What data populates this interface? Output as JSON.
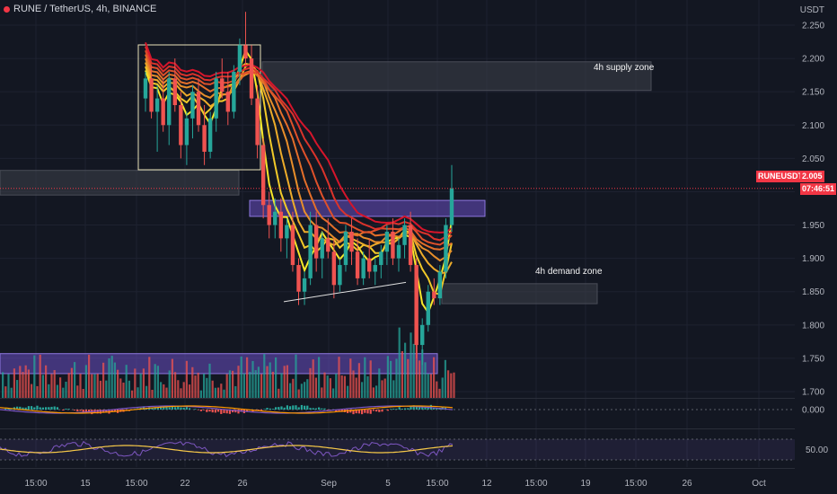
{
  "header": {
    "title": "RUNE / TetherUS, 4h, BINANCE",
    "unit": "USDT"
  },
  "price_badge": {
    "symbol": "RUNEUSDT",
    "price": "2.005",
    "countdown": "07:46:51"
  },
  "annotations": {
    "supply_zone": "4h supply zone",
    "demand_zone": "4h demand zone"
  },
  "indicators": {
    "oscillator_level": "0.000",
    "rsi_level": "50.00"
  },
  "colors": {
    "background": "#131722",
    "up": "#26a69a",
    "down": "#ef5350",
    "zone_gray": "#3a3d48",
    "zone_purple": "#6a4fc2",
    "ribbon_start": "#f7e829",
    "ribbon_end": "#d5152b"
  },
  "chart_data": {
    "type": "candlestick",
    "y_axis": {
      "ticks": [
        "2.250",
        "2.200",
        "2.150",
        "2.100",
        "2.050",
        "2.000",
        "1.950",
        "1.900",
        "1.850",
        "1.800",
        "1.750",
        "1.700"
      ],
      "range": [
        1.67,
        2.27
      ]
    },
    "x_axis": {
      "ticks": [
        "15:00",
        "15",
        "15:00",
        "22",
        "26",
        "Sep",
        "5",
        "15:00",
        "12",
        "15:00",
        "19",
        "15:00",
        "26",
        "Oct"
      ]
    },
    "candles": [
      [
        2.14,
        2.18,
        2.12,
        2.17
      ],
      [
        2.17,
        2.19,
        2.11,
        2.12
      ],
      [
        2.12,
        2.16,
        2.06,
        2.14
      ],
      [
        2.14,
        2.17,
        2.09,
        2.1
      ],
      [
        2.1,
        2.18,
        2.07,
        2.17
      ],
      [
        2.17,
        2.2,
        2.12,
        2.13
      ],
      [
        2.13,
        2.15,
        2.05,
        2.07
      ],
      [
        2.07,
        2.12,
        2.04,
        2.11
      ],
      [
        2.11,
        2.16,
        2.08,
        2.15
      ],
      [
        2.15,
        2.17,
        2.09,
        2.1
      ],
      [
        2.1,
        2.13,
        2.04,
        2.06
      ],
      [
        2.06,
        2.12,
        2.05,
        2.11
      ],
      [
        2.11,
        2.18,
        2.09,
        2.17
      ],
      [
        2.17,
        2.2,
        2.14,
        2.15
      ],
      [
        2.15,
        2.18,
        2.1,
        2.12
      ],
      [
        2.12,
        2.19,
        2.11,
        2.18
      ],
      [
        2.18,
        2.23,
        2.16,
        2.22
      ],
      [
        2.22,
        2.27,
        2.19,
        2.2
      ],
      [
        2.2,
        2.22,
        2.13,
        2.14
      ],
      [
        2.14,
        2.16,
        2.05,
        2.07
      ],
      [
        2.07,
        2.08,
        1.96,
        1.98
      ],
      [
        1.98,
        2.0,
        1.93,
        1.95
      ],
      [
        1.95,
        1.99,
        1.93,
        1.97
      ],
      [
        1.97,
        1.99,
        1.91,
        1.93
      ],
      [
        1.93,
        1.96,
        1.9,
        1.95
      ],
      [
        1.95,
        1.97,
        1.88,
        1.89
      ],
      [
        1.89,
        1.9,
        1.83,
        1.85
      ],
      [
        1.85,
        1.88,
        1.83,
        1.87
      ],
      [
        1.87,
        1.97,
        1.86,
        1.95
      ],
      [
        1.95,
        1.97,
        1.88,
        1.9
      ],
      [
        1.9,
        1.94,
        1.87,
        1.93
      ],
      [
        1.93,
        1.96,
        1.9,
        1.91
      ],
      [
        1.91,
        1.93,
        1.84,
        1.86
      ],
      [
        1.86,
        1.9,
        1.85,
        1.89
      ],
      [
        1.89,
        1.95,
        1.88,
        1.94
      ],
      [
        1.94,
        1.96,
        1.89,
        1.91
      ],
      [
        1.91,
        1.93,
        1.86,
        1.87
      ],
      [
        1.87,
        1.91,
        1.86,
        1.9
      ],
      [
        1.9,
        1.93,
        1.87,
        1.88
      ],
      [
        1.88,
        1.9,
        1.86,
        1.89
      ],
      [
        1.89,
        1.92,
        1.87,
        1.91
      ],
      [
        1.91,
        1.95,
        1.89,
        1.94
      ],
      [
        1.94,
        1.96,
        1.89,
        1.9
      ],
      [
        1.9,
        1.93,
        1.88,
        1.92
      ],
      [
        1.92,
        1.96,
        1.9,
        1.95
      ],
      [
        1.95,
        1.97,
        1.88,
        1.89
      ],
      [
        1.89,
        1.9,
        1.75,
        1.77
      ],
      [
        1.77,
        1.81,
        1.74,
        1.8
      ],
      [
        1.8,
        1.86,
        1.79,
        1.85
      ],
      [
        1.85,
        1.87,
        1.83,
        1.84
      ],
      [
        1.84,
        1.89,
        1.83,
        1.88
      ],
      [
        1.88,
        1.96,
        1.87,
        1.95
      ],
      [
        1.95,
        2.04,
        1.94,
        2.005
      ]
    ],
    "ribbon_periods": 8,
    "zones": [
      {
        "label": "4h supply zone",
        "top": 2.195,
        "bottom": 2.152
      },
      {
        "label": "4h demand zone",
        "top": 1.862,
        "bottom": 1.832
      },
      {
        "label": "",
        "top": 2.032,
        "bottom": 1.995
      },
      {
        "label": "",
        "top": 1.987,
        "bottom": 1.963
      },
      {
        "label": "",
        "top": 1.757,
        "bottom": 1.727
      }
    ],
    "last_price": 2.005
  }
}
